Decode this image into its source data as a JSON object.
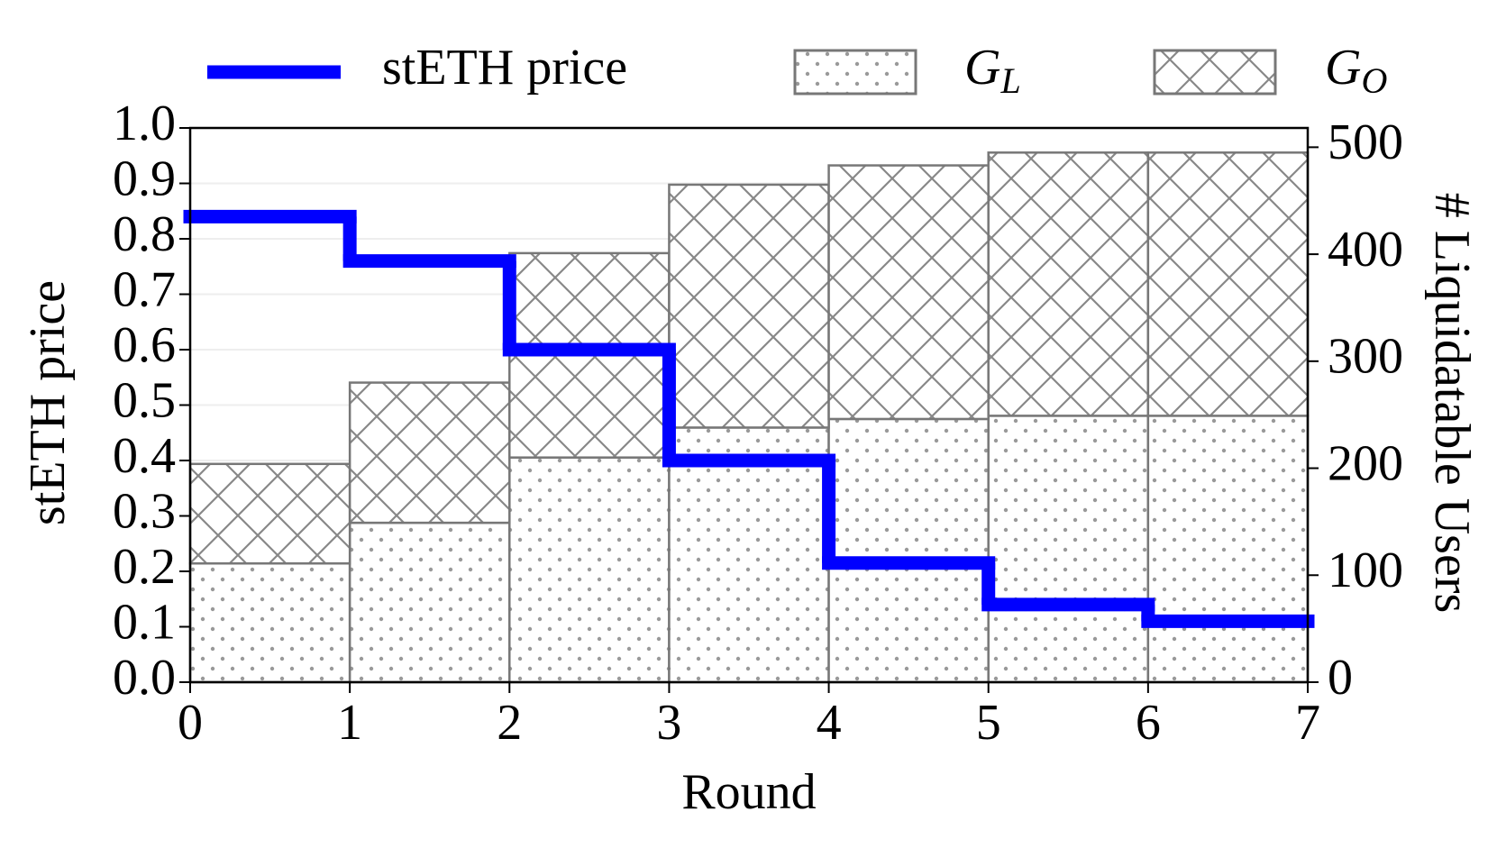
{
  "chart_data": {
    "type": "step-bar",
    "xlabel": "Round",
    "ylabel": "stETH price",
    "y2label": "# Liquidatable Users",
    "x": [
      0,
      1,
      2,
      3,
      4,
      5,
      6
    ],
    "xlim": [
      0,
      7
    ],
    "xticks": [
      0,
      1,
      2,
      3,
      4,
      5,
      6,
      7
    ],
    "ylim": [
      0,
      1
    ],
    "yticks": [
      {
        "value": 0,
        "label": "0.0"
      },
      0.1,
      0.2,
      0.3,
      0.4,
      0.5,
      0.6,
      0.7,
      0.8,
      0.9,
      {
        "value": 1,
        "label": "1.0"
      }
    ],
    "y2lim": [
      0,
      518
    ],
    "y2ticks": [
      0,
      100,
      200,
      300,
      400,
      500
    ],
    "grid": true,
    "series": [
      {
        "name": "stETH price",
        "type": "step",
        "color": "#0000ff",
        "values": [
          0.84,
          0.76,
          0.6,
          0.4,
          0.215,
          0.14,
          0.11
        ]
      },
      {
        "name": "GL",
        "type": "bar",
        "axis": "y2",
        "pattern": "dots",
        "color": "#808080",
        "values": [
          111,
          149,
          210,
          238,
          246,
          249,
          249
        ]
      },
      {
        "name": "GO",
        "type": "bar",
        "axis": "y2",
        "pattern": "crosshatch",
        "color": "#808080",
        "values": [
          93,
          131,
          191,
          227,
          237,
          246,
          246
        ]
      }
    ]
  }
}
